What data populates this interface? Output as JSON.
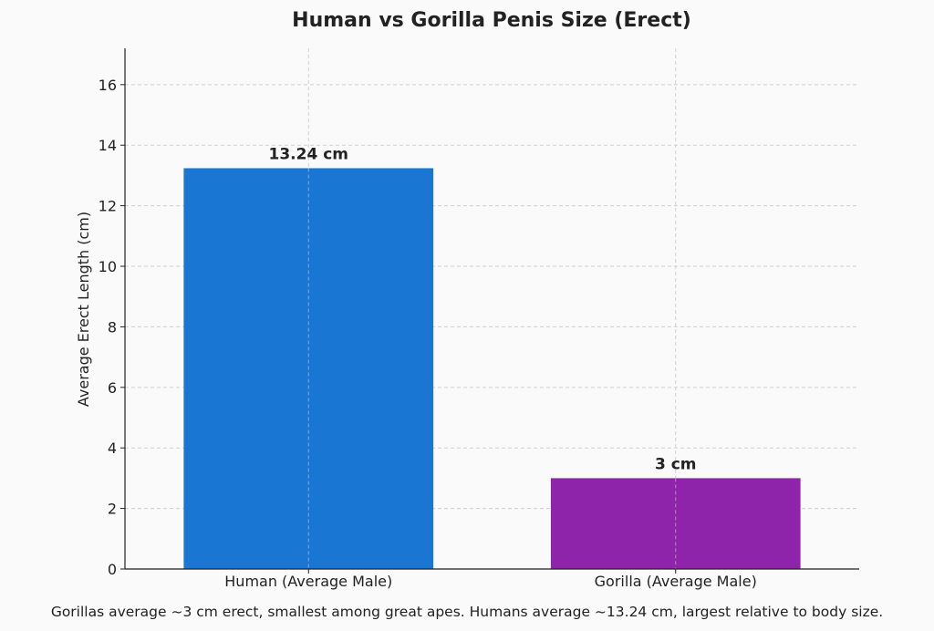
{
  "chart_data": {
    "type": "bar",
    "title": "Human vs Gorilla Penis Size (Erect)",
    "xlabel": "",
    "ylabel": "Average Erect Length (cm)",
    "categories": [
      "Human (Average Male)",
      "Gorilla (Average Male)"
    ],
    "values": [
      13.24,
      3
    ],
    "bar_labels": [
      "13.24 cm",
      "3 cm"
    ],
    "colors": [
      "#1976d2",
      "#8e24aa"
    ],
    "ylim": [
      0,
      17.2
    ],
    "yticks": [
      0,
      2,
      4,
      6,
      8,
      10,
      12,
      14,
      16
    ],
    "grid": true
  },
  "caption": "Gorillas average ~3 cm erect, smallest among great apes. Humans average ~13.24 cm, largest relative to body size."
}
